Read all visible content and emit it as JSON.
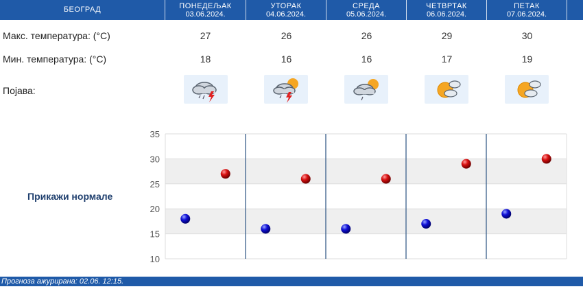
{
  "header": {
    "city": "БЕОГРАД",
    "days": [
      {
        "day": "ПОНЕДЕЉАК",
        "date": "03.06.2024."
      },
      {
        "day": "УТОРАК",
        "date": "04.06.2024."
      },
      {
        "day": "СРЕДА",
        "date": "05.06.2024."
      },
      {
        "day": "ЧЕТВРТАК",
        "date": "06.06.2024."
      },
      {
        "day": "ПЕТАК",
        "date": "07.06.2024."
      }
    ]
  },
  "rows": {
    "max_label": "Макс. температура: (°C)",
    "min_label": "Мин. температура: (°C)",
    "phenomenon_label": "Појава:",
    "max": [
      "27",
      "26",
      "26",
      "29",
      "30"
    ],
    "min": [
      "18",
      "16",
      "16",
      "17",
      "19"
    ],
    "icons": [
      "cloud-thunderstorm-rain-icon",
      "partly-cloudy-thunderstorm-icon",
      "partly-cloudy-shower-icon",
      "sun-behind-cloud-icon",
      "sun-behind-cloud-icon"
    ]
  },
  "normals_label": "Прикажи нормале",
  "chart_data": {
    "type": "scatter",
    "categories": [
      "03.06.2024.",
      "04.06.2024.",
      "05.06.2024.",
      "06.06.2024.",
      "07.06.2024."
    ],
    "series": [
      {
        "values": [
          27,
          26,
          26,
          29,
          30
        ],
        "color": "#cc0000"
      },
      {
        "values": [
          18,
          16,
          16,
          17,
          19
        ],
        "color": "#0000cc"
      }
    ],
    "yticks": [
      "35",
      "30",
      "25",
      "20",
      "15",
      "10"
    ],
    "ylim": [
      10,
      35
    ],
    "grid": true
  },
  "footer": {
    "text": "Прогноза ажурирана:  02.06. 12:15."
  }
}
